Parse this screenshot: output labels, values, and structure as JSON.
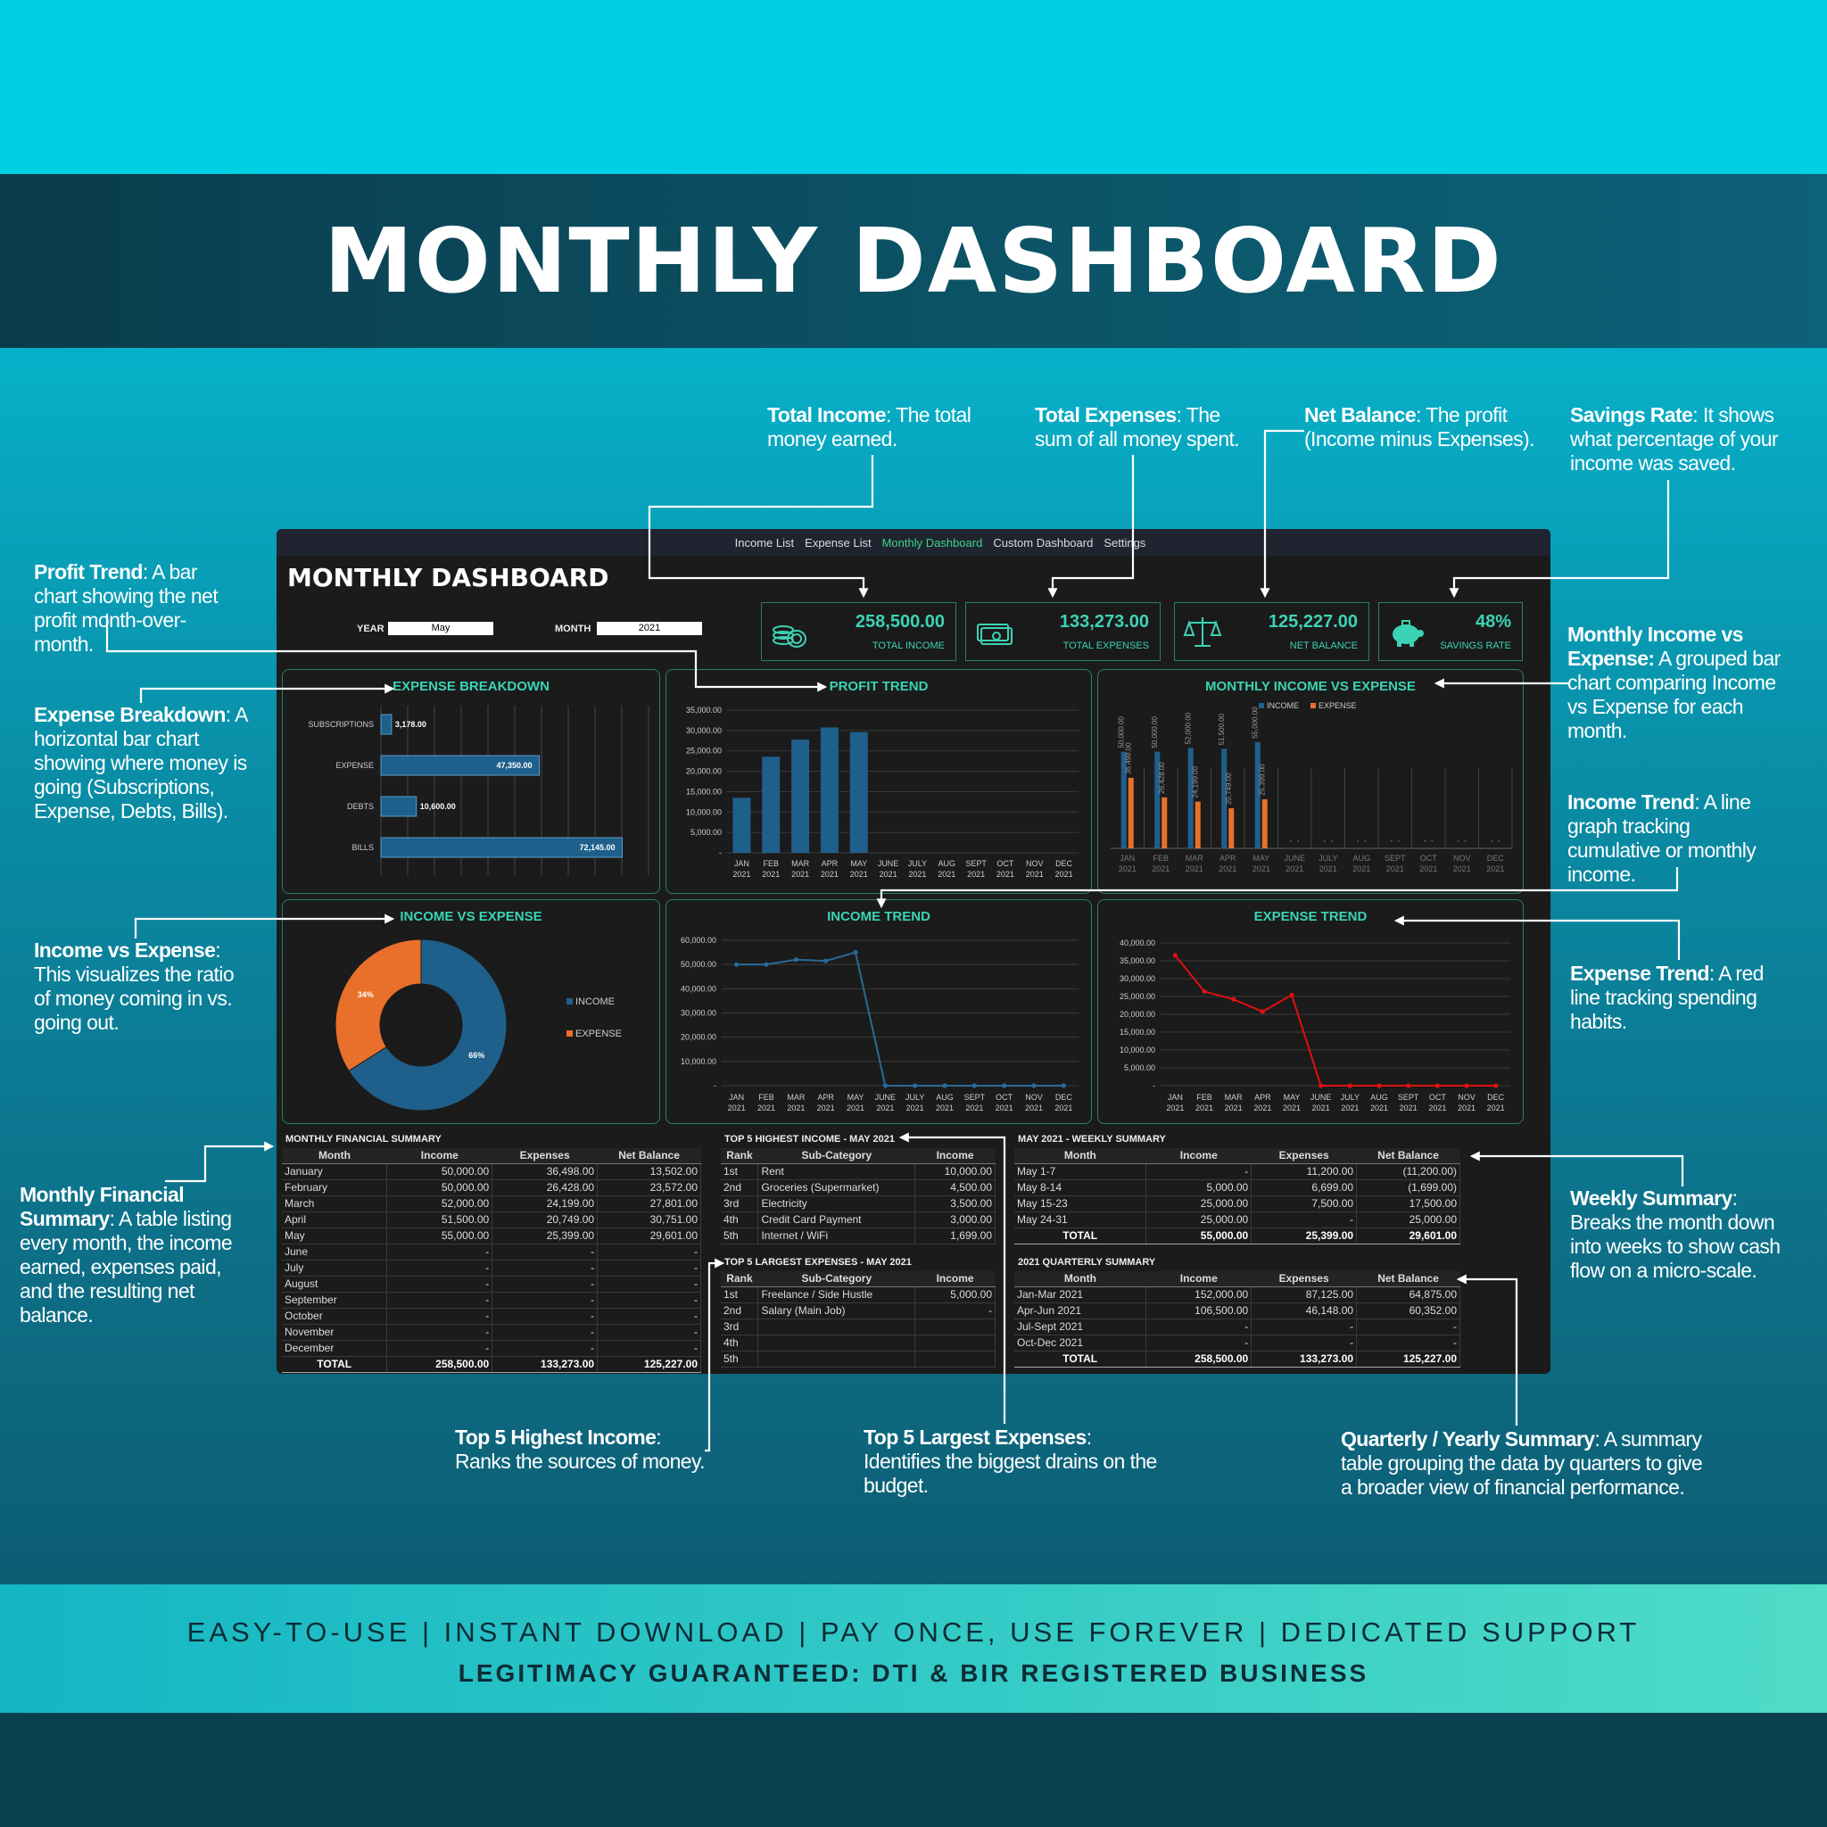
{
  "page": {
    "title": "MONTHLY DASHBOARD",
    "footer_line1": "EASY-TO-USE | INSTANT DOWNLOAD | PAY ONCE, USE FOREVER | DEDICATED SUPPORT",
    "footer_line2": "LEGITIMACY GUARANTEED: DTI & BIR REGISTERED BUSINESS"
  },
  "notes": {
    "total_income": {
      "bold": "Total Income",
      "text": ": The total money earned."
    },
    "total_expenses": {
      "bold": "Total Expenses",
      "text": ": The sum of all money spent."
    },
    "net_balance": {
      "bold": "Net Balance",
      "text": ": The profit (Income minus Expenses)."
    },
    "savings_rate": {
      "bold": "Savings Rate",
      "text": ": It shows what percentage of your income was saved."
    },
    "profit_trend": {
      "bold": "Profit Trend",
      "text": ": A bar chart showing the net profit month-over-month."
    },
    "expense_breakdown": {
      "bold": "Expense Breakdown",
      "text": ": A horizontal bar chart showing where money is going (Subscriptions, Expense, Debts, Bills)."
    },
    "income_vs_expense": {
      "bold": "Income vs Expense",
      "text": ": This visualizes the ratio of money coming in vs. going out."
    },
    "monthly_summary": {
      "bold": "Monthly Financial Summary",
      "text": ": A table listing every month, the income earned, expenses paid, and the resulting net balance."
    },
    "monthly_ive": {
      "bold": "Monthly Income vs Expense:",
      "text": " A grouped bar chart comparing Income vs Expense for each month."
    },
    "income_trend": {
      "bold": "Income Trend",
      "text": ": A line graph tracking cumulative or monthly income."
    },
    "expense_trend": {
      "bold": "Expense Trend",
      "text": ": A red line tracking spending habits."
    },
    "weekly_summary": {
      "bold": "Weekly Summary",
      "text": ": Breaks the month down into weeks to show cash flow on a micro-scale."
    },
    "top5_income": {
      "bold": "Top 5 Highest Income",
      "text": ": Ranks the sources of money."
    },
    "top5_expenses": {
      "bold": "Top 5 Largest Expenses",
      "text": ": Identifies the biggest drains on the budget."
    },
    "quarterly": {
      "bold": "Quarterly / Yearly Summary",
      "text": ": A summary table grouping the data by quarters to give a broader view of financial performance."
    }
  },
  "dashboard": {
    "nav": [
      "Income List",
      "Expense List",
      "Monthly Dashboard",
      "Custom Dashboard",
      "Settings"
    ],
    "title": "MONTHLY DASHBOARD",
    "year_label": "YEAR",
    "year_value": "May",
    "month_label": "MONTH",
    "month_value": "2021",
    "kpis": [
      {
        "value": "258,500.00",
        "label": "TOTAL INCOME",
        "icon": "coins-icon"
      },
      {
        "value": "133,273.00",
        "label": "TOTAL EXPENSES",
        "icon": "cash-icon"
      },
      {
        "value": "125,227.00",
        "label": "NET BALANCE",
        "icon": "scale-icon"
      },
      {
        "value": "48%",
        "label": "SAVINGS RATE",
        "icon": "piggy-bank-icon"
      }
    ],
    "colors": {
      "accent": "#3cd3b4",
      "income": "#1f5f8b",
      "expense": "#e8702a",
      "red": "#e01010"
    }
  },
  "chart_data": [
    {
      "id": "expense_breakdown",
      "type": "bar",
      "orientation": "horizontal",
      "title": "EXPENSE BREAKDOWN",
      "categories": [
        "SUBSCRIPTIONS",
        "EXPENSE",
        "DEBTS",
        "BILLS"
      ],
      "values": [
        3178,
        47350,
        10600,
        72145
      ],
      "labels": [
        "3,178.00",
        "47,350.00",
        "10,600.00",
        "72,145.00"
      ]
    },
    {
      "id": "profit_trend",
      "type": "bar",
      "title": "PROFIT TREND",
      "categories": [
        "JAN 2021",
        "FEB 2021",
        "MAR 2021",
        "APR 2021",
        "MAY 2021",
        "JUNE 2021",
        "JULY 2021",
        "AUG 2021",
        "SEPT 2021",
        "OCT 2021",
        "NOV 2021",
        "DEC 2021"
      ],
      "values": [
        13502,
        23572,
        27801,
        30751,
        29601,
        0,
        0,
        0,
        0,
        0,
        0,
        0
      ],
      "ylim": [
        0,
        35000
      ],
      "yticks": [
        "35,000.00",
        "30,000.00",
        "25,000.00",
        "20,000.00",
        "15,000.00",
        "10,000.00",
        "5,000.00",
        "-"
      ]
    },
    {
      "id": "monthly_ive",
      "type": "bar",
      "title": "MONTHLY INCOME VS EXPENSE",
      "legend": [
        "INCOME",
        "EXPENSE"
      ],
      "categories": [
        "JAN 2021",
        "FEB 2021",
        "MAR 2021",
        "APR 2021",
        "MAY 2021",
        "JUNE 2021",
        "JULY 2021",
        "AUG 2021",
        "SEPT 2021",
        "OCT 2021",
        "NOV 2021",
        "DEC 2021"
      ],
      "series": [
        {
          "name": "INCOME",
          "values": [
            50000,
            50000,
            52000,
            51500,
            55000,
            0,
            0,
            0,
            0,
            0,
            0,
            0
          ],
          "labels": [
            "50,000.00",
            "50,000.00",
            "52,000.00",
            "51,500.00",
            "55,000.00",
            "-",
            "-",
            "-",
            "-",
            "-",
            "-",
            "-"
          ]
        },
        {
          "name": "EXPENSE",
          "values": [
            36498,
            26428,
            24199,
            20749,
            25399,
            0,
            0,
            0,
            0,
            0,
            0,
            0
          ],
          "labels": [
            "36,498.00",
            "26,428.00",
            "24,199.00",
            "20,749.00",
            "25,399.00",
            "-",
            "-",
            "-",
            "-",
            "-",
            "-",
            "-"
          ]
        }
      ]
    },
    {
      "id": "income_vs_expense",
      "type": "pie",
      "title": "INCOME VS EXPENSE",
      "slices": [
        {
          "name": "INCOME",
          "value": 66,
          "label": "66%"
        },
        {
          "name": "EXPENSE",
          "value": 34,
          "label": "34%"
        }
      ]
    },
    {
      "id": "income_trend",
      "type": "line",
      "title": "INCOME TREND",
      "categories": [
        "JAN 2021",
        "FEB 2021",
        "MAR 2021",
        "APR 2021",
        "MAY 2021",
        "JUNE 2021",
        "JULY 2021",
        "AUG 2021",
        "SEPT 2021",
        "OCT 2021",
        "NOV 2021",
        "DEC 2021"
      ],
      "values": [
        50000,
        50000,
        52000,
        51500,
        55000,
        0,
        0,
        0,
        0,
        0,
        0,
        0
      ],
      "ylim": [
        0,
        60000
      ],
      "yticks": [
        "60,000.00",
        "50,000.00",
        "40,000.00",
        "30,000.00",
        "20,000.00",
        "10,000.00",
        "-"
      ]
    },
    {
      "id": "expense_trend",
      "type": "line",
      "title": "EXPENSE TREND",
      "categories": [
        "JAN 2021",
        "FEB 2021",
        "MAR 2021",
        "APR 2021",
        "MAY 2021",
        "JUNE 2021",
        "JULY 2021",
        "AUG 2021",
        "SEPT 2021",
        "OCT 2021",
        "NOV 2021",
        "DEC 2021"
      ],
      "values": [
        36498,
        26428,
        24199,
        20749,
        25399,
        0,
        0,
        0,
        0,
        0,
        0,
        0
      ],
      "ylim": [
        0,
        40000
      ],
      "yticks": [
        "40,000.00",
        "35,000.00",
        "30,000.00",
        "25,000.00",
        "20,000.00",
        "15,000.00",
        "10,000.00",
        "5,000.00",
        "-"
      ]
    }
  ],
  "tables": {
    "monthly": {
      "caption": "MONTHLY FINANCIAL SUMMARY",
      "headers": [
        "Month",
        "Income",
        "Expenses",
        "Net Balance"
      ],
      "rows": [
        [
          "January",
          "50,000.00",
          "36,498.00",
          "13,502.00"
        ],
        [
          "February",
          "50,000.00",
          "26,428.00",
          "23,572.00"
        ],
        [
          "March",
          "52,000.00",
          "24,199.00",
          "27,801.00"
        ],
        [
          "April",
          "51,500.00",
          "20,749.00",
          "30,751.00"
        ],
        [
          "May",
          "55,000.00",
          "25,399.00",
          "29,601.00"
        ],
        [
          "June",
          "-",
          "-",
          "-"
        ],
        [
          "July",
          "-",
          "-",
          "-"
        ],
        [
          "August",
          "-",
          "-",
          "-"
        ],
        [
          "September",
          "-",
          "-",
          "-"
        ],
        [
          "October",
          "-",
          "-",
          "-"
        ],
        [
          "November",
          "-",
          "-",
          "-"
        ],
        [
          "December",
          "-",
          "-",
          "-"
        ]
      ],
      "total": [
        "TOTAL",
        "258,500.00",
        "133,273.00",
        "125,227.00"
      ]
    },
    "top_income": {
      "caption": "TOP 5 HIGHEST INCOME - MAY 2021",
      "headers": [
        "Rank",
        "Sub-Category",
        "Income"
      ],
      "rows": [
        [
          "1st",
          "Rent",
          "10,000.00"
        ],
        [
          "2nd",
          "Groceries (Supermarket)",
          "4,500.00"
        ],
        [
          "3rd",
          "Electricity",
          "3,500.00"
        ],
        [
          "4th",
          "Credit Card Payment",
          "3,000.00"
        ],
        [
          "5th",
          "Internet / WiFi",
          "1,699.00"
        ]
      ]
    },
    "top_expenses": {
      "caption": "TOP 5 LARGEST EXPENSES - MAY 2021",
      "headers": [
        "Rank",
        "Sub-Category",
        "Income"
      ],
      "rows": [
        [
          "1st",
          "Freelance / Side Hustle",
          "5,000.00"
        ],
        [
          "2nd",
          "Salary (Main Job)",
          "-"
        ],
        [
          "3rd",
          "",
          ""
        ],
        [
          "4th",
          "",
          ""
        ],
        [
          "5th",
          "",
          ""
        ]
      ]
    },
    "weekly": {
      "caption": "MAY 2021 - WEEKLY SUMMARY",
      "headers": [
        "Month",
        "Income",
        "Expenses",
        "Net Balance"
      ],
      "rows": [
        [
          "May 1-7",
          "-",
          "11,200.00",
          "(11,200.00)"
        ],
        [
          "May 8-14",
          "5,000.00",
          "6,699.00",
          "(1,699.00)"
        ],
        [
          "May 15-23",
          "25,000.00",
          "7,500.00",
          "17,500.00"
        ],
        [
          "May 24-31",
          "25,000.00",
          "-",
          "25,000.00"
        ]
      ],
      "total": [
        "TOTAL",
        "55,000.00",
        "25,399.00",
        "29,601.00"
      ]
    },
    "quarterly": {
      "caption": "2021 QUARTERLY SUMMARY",
      "headers": [
        "Month",
        "Income",
        "Expenses",
        "Net Balance"
      ],
      "rows": [
        [
          "Jan-Mar 2021",
          "152,000.00",
          "87,125.00",
          "64,875.00"
        ],
        [
          "Apr-Jun 2021",
          "106,500.00",
          "46,148.00",
          "60,352.00"
        ],
        [
          "Jul-Sept 2021",
          "-",
          "-",
          "-"
        ],
        [
          "Oct-Dec 2021",
          "-",
          "-",
          "-"
        ]
      ],
      "total": [
        "TOTAL",
        "258,500.00",
        "133,273.00",
        "125,227.00"
      ]
    }
  }
}
